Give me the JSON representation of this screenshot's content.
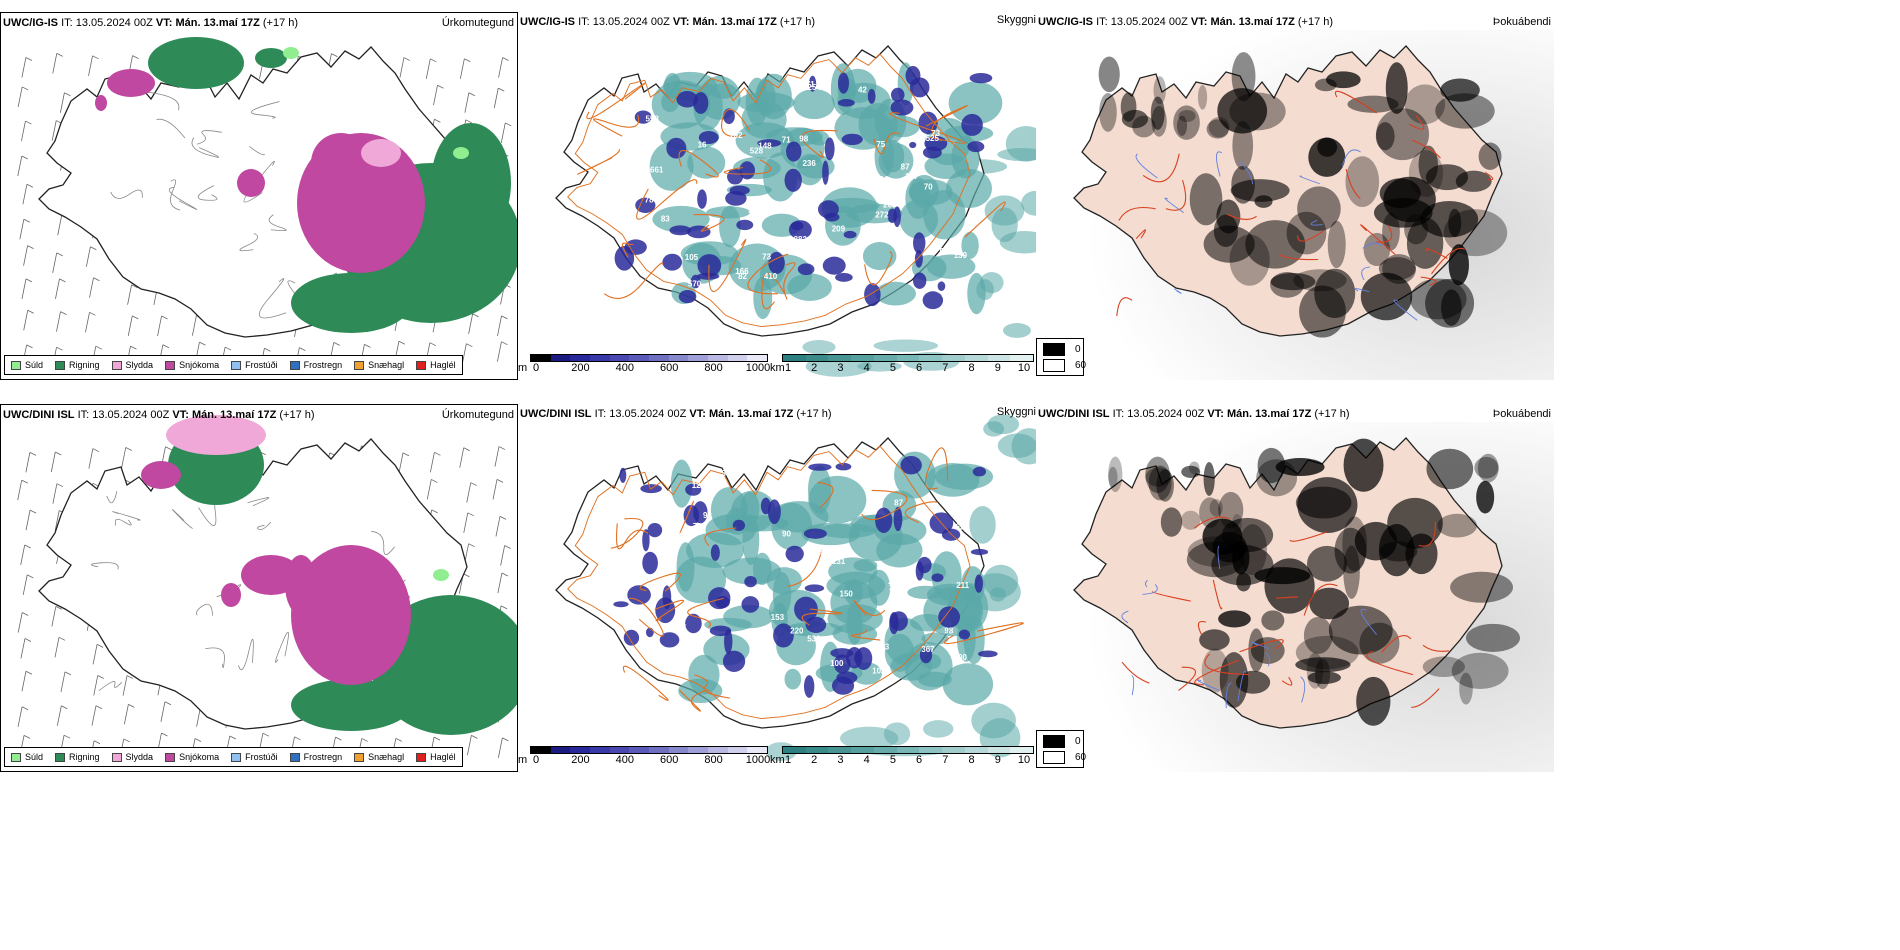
{
  "rows": [
    {
      "precip": {
        "model": "UWC/IG-IS",
        "it_label": "IT:",
        "it_value": "13.05.2024 00Z",
        "vt_label": "VT:",
        "vt_value": "Mán. 13.maí 17Z",
        "lead": "(+17 h)",
        "title_right": "Úrkomutegund"
      },
      "cloud": {
        "model": "UWC/IG-IS",
        "it_label": "IT:",
        "it_value": "13.05.2024 00Z",
        "vt_label": "VT:",
        "vt_value": "Mán. 13.maí 17Z",
        "lead": "(+17 h)",
        "title_right": "Skyggni",
        "labels": [
          "94",
          "105",
          "558",
          "70",
          "102",
          "73",
          "148",
          "139",
          "236",
          "203",
          "166",
          "75",
          "302",
          "188",
          "410",
          "382",
          "123",
          "107",
          "98",
          "209",
          "528",
          "272",
          "73",
          "82",
          "171",
          "254",
          "661",
          "570",
          "87",
          "525",
          "78",
          "83",
          "105",
          "71",
          "42",
          "16",
          "84",
          "90"
        ]
      },
      "fog": {
        "model": "UWC/IG-IS",
        "it_label": "IT:",
        "it_value": "13.05.2024 00Z",
        "vt_label": "VT:",
        "vt_value": "Mán. 13.maí 17Z",
        "lead": "(+17 h)",
        "title_right": "Þokuábendi"
      }
    },
    {
      "precip": {
        "model": "UWC/DINI ISL",
        "it_label": "IT:",
        "it_value": "13.05.2024 00Z",
        "vt_label": "VT:",
        "vt_value": "Mán. 13.maí 17Z",
        "lead": "(+17 h)",
        "title_right": "Úrkomutegund"
      },
      "cloud": {
        "model": "UWC/DINI ISL",
        "it_label": "IT:",
        "it_value": "13.05.2024 00Z",
        "vt_label": "VT:",
        "vt_value": "Mán. 13.maí 17Z",
        "lead": "(+17 h)",
        "title_right": "Skyggni",
        "labels": [
          "109",
          "220",
          "150",
          "106",
          "100",
          "90",
          "100",
          "87",
          "208",
          "175",
          "377",
          "195",
          "124",
          "183",
          "367",
          "201",
          "532",
          "238",
          "98",
          "62",
          "123",
          "211",
          "153",
          "93",
          "192",
          "76",
          "74",
          "50",
          "131",
          "102"
        ]
      },
      "fog": {
        "model": "UWC/DINI ISL",
        "it_label": "IT:",
        "it_value": "13.05.2024 00Z",
        "vt_label": "VT:",
        "vt_value": "Mán. 13.maí 17Z",
        "lead": "(+17 h)",
        "title_right": "Þokuábendi"
      }
    }
  ],
  "precip_legend": [
    {
      "label": "Súld",
      "color": "#90ee90"
    },
    {
      "label": "Rigning",
      "color": "#2e8b57"
    },
    {
      "label": "Slydda",
      "color": "#f0a8d8"
    },
    {
      "label": "Snjókoma",
      "color": "#c048a0"
    },
    {
      "label": "Frostúði",
      "color": "#90c0f0"
    },
    {
      "label": "Frostregn",
      "color": "#3070c0"
    },
    {
      "label": "Snæhagl",
      "color": "#f0a030"
    },
    {
      "label": "Haglél",
      "color": "#e02020"
    }
  ],
  "cloud_base_scale": {
    "unit": "m",
    "ticks": [
      "0",
      "200",
      "400",
      "600",
      "800",
      "1000"
    ],
    "colors": [
      "#000000",
      "#1a1a80",
      "#28289a",
      "#3838a8",
      "#4848b0",
      "#5a5ab8",
      "#7070c0",
      "#8888cc",
      "#a0a0d8",
      "#b8b8e2",
      "#d0d0ec",
      "#e8e8f6"
    ]
  },
  "visibility_scale": {
    "unit": "km",
    "ticks": [
      "1",
      "2",
      "3",
      "4",
      "5",
      "6",
      "7",
      "8",
      "9",
      "10"
    ],
    "colors": [
      "#2e8080",
      "#3a8a8a",
      "#489494",
      "#56a0a0",
      "#66aaaa",
      "#78b6b6",
      "#8cc2c2",
      "#a0cccc",
      "#b6d8d8",
      "#cce4e4",
      "#e2f0f0"
    ]
  },
  "fog_scale": {
    "top": "0",
    "bottom": "60",
    "top_color": "#000000",
    "bottom_color": "#ffffff"
  },
  "colors": {
    "coast": "#111111",
    "roads": "#e07020",
    "roads_fog": "#d84020",
    "land_fog": "#f4dcd0",
    "rivers": "#6080e0",
    "vis": "#5aa8a8",
    "cloud": "#2a2a9a"
  }
}
